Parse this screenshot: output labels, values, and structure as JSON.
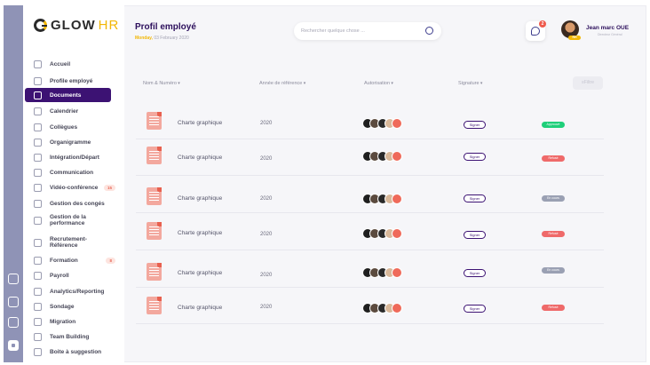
{
  "app": {
    "logo_main": "GLOW",
    "logo_accent": "HR"
  },
  "sidebar": {
    "items": [
      {
        "label": "Accueil",
        "icon": "home-icon"
      },
      {
        "label": "Profile employé",
        "icon": "profile-icon"
      },
      {
        "label": "Documents",
        "icon": "document-icon",
        "active": true
      },
      {
        "label": "Calendrier",
        "icon": "calendar-icon"
      },
      {
        "label": "Collègues",
        "icon": "colleagues-icon"
      },
      {
        "label": "Organigramme",
        "icon": "org-chart-icon"
      },
      {
        "label": "Intégration/Départ",
        "icon": "onboarding-icon"
      },
      {
        "label": "Communication",
        "icon": "communication-icon"
      },
      {
        "label": "Vidéo-conférence",
        "icon": "video-icon",
        "badge": "15"
      },
      {
        "label": "Gestion des congés",
        "icon": "leave-icon"
      },
      {
        "label": "Gestion de la performance",
        "icon": "performance-icon"
      },
      {
        "label": "Recrutement-Référence",
        "icon": "recruitment-icon"
      },
      {
        "label": "Formation",
        "icon": "training-icon",
        "badge": "8"
      },
      {
        "label": "Payroll",
        "icon": "payroll-icon"
      },
      {
        "label": "Analytics/Reporting",
        "icon": "analytics-icon"
      },
      {
        "label": "Sondage",
        "icon": "survey-icon"
      },
      {
        "label": "Migration",
        "icon": "migration-icon"
      },
      {
        "label": "Team Building",
        "icon": "team-icon"
      },
      {
        "label": "Boite à suggestion",
        "icon": "suggestion-box-icon"
      }
    ]
  },
  "header": {
    "title": "Profil employé",
    "date_day": "Monday,",
    "date_rest": "03 February 2020",
    "search_placeholder": "Rechercher quelque chose ...",
    "notification_count": "2",
    "user_name": "Jean marc OUE",
    "user_role": "Directeur Général",
    "user_tag": "RH"
  },
  "table": {
    "columns": [
      "Nom & Numéro",
      "Année de référence",
      "Autorisation",
      "Signature"
    ],
    "filter_label": "Filtre",
    "rows": [
      {
        "name": "Charte graphique",
        "year": "2020",
        "sign_label": "Signer",
        "status": "Approuvé",
        "status_color": "#1fcf7a"
      },
      {
        "name": "Charte graphique",
        "year": "2020",
        "sign_label": "Signer",
        "status": "Refusé",
        "status_color": "#ef6a6a"
      },
      {
        "name": "Charte graphique",
        "year": "2020",
        "sign_label": "Signer",
        "status": "En cours",
        "status_color": "#9aa0b3"
      },
      {
        "name": "Charte graphique",
        "year": "2020",
        "sign_label": "Signer",
        "status": "Refusé",
        "status_color": "#ef6a6a"
      },
      {
        "name": "Charte graphique",
        "year": "2020",
        "sign_label": "Signer",
        "status": "En cours",
        "status_color": "#9aa0b3"
      },
      {
        "name": "Charte graphique",
        "year": "2020",
        "sign_label": "Signer",
        "status": "Refusé",
        "status_color": "#ef6a6a"
      }
    ]
  },
  "colors": {
    "primary": "#3c1273",
    "accent": "#f2b705",
    "rail": "#8f93b6"
  }
}
